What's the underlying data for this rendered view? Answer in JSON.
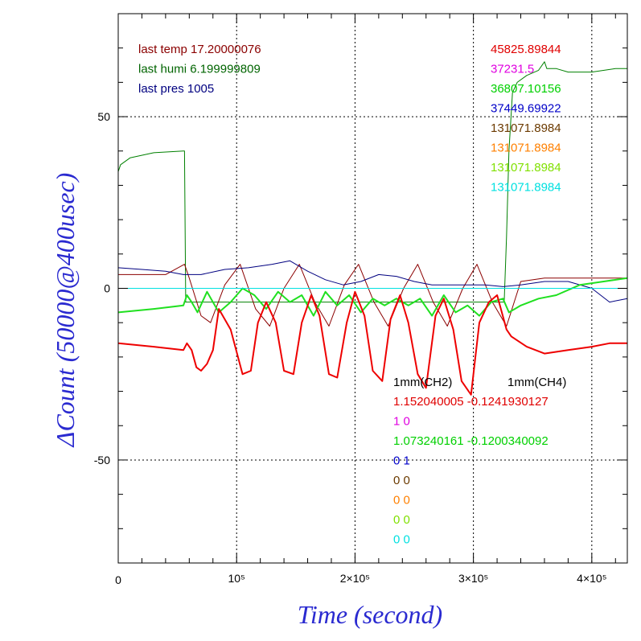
{
  "chart_data": {
    "type": "line",
    "xlabel": "Time (second)",
    "ylabel": "ΔCount (50000@400usec)",
    "xlim": [
      0,
      430000
    ],
    "ylim": [
      -80,
      80
    ],
    "grid": true,
    "x_tick_labels": [
      {
        "value": 0,
        "label": "0"
      },
      {
        "value": 100000,
        "label": "10⁵"
      },
      {
        "value": 200000,
        "label": "2×10⁵"
      },
      {
        "value": 300000,
        "label": "3×10⁵"
      },
      {
        "value": 400000,
        "label": "4×10⁵"
      }
    ],
    "y_tick_labels": [
      {
        "value": 50,
        "label": "50"
      },
      {
        "value": 0,
        "label": "0"
      },
      {
        "value": -50,
        "label": "-50"
      }
    ],
    "info_top_left": [
      {
        "text": "last temp 17.20000076",
        "color": "#8b0000"
      },
      {
        "text": "last humi 6.199999809",
        "color": "#006400"
      },
      {
        "text": "last pres 1005",
        "color": "#000080"
      }
    ],
    "info_top_right": [
      {
        "text": "45825.89844",
        "color": "#e00000"
      },
      {
        "text": "37231.5",
        "color": "#e000e0"
      },
      {
        "text": "36807.10156",
        "color": "#00d000"
      },
      {
        "text": "37449.69922",
        "color": "#0000c8"
      },
      {
        "text": "131071.8984",
        "color": "#6b3a00"
      },
      {
        "text": "131071.8984",
        "color": "#ff8000"
      },
      {
        "text": "131071.8984",
        "color": "#80e000"
      },
      {
        "text": "131071.8984",
        "color": "#00e0e0"
      }
    ],
    "legend_header": {
      "col1": "1mm(CH2)",
      "col2": "1mm(CH4)"
    },
    "legend_rows": [
      {
        "text": "1.152040005 -0.1241930127",
        "color": "#e00000"
      },
      {
        "text": "1 0",
        "color": "#e000e0"
      },
      {
        "text": "1.073240161 -0.1200340092",
        "color": "#00d000"
      },
      {
        "text": "0 1",
        "color": "#0000c8"
      },
      {
        "text": "0 0",
        "color": "#6b3a00"
      },
      {
        "text": "0 0",
        "color": "#ff8000"
      },
      {
        "text": "0 0",
        "color": "#80e000"
      },
      {
        "text": "0 0",
        "color": "#00e0e0"
      }
    ],
    "series": [
      {
        "color": "#008000",
        "x": [
          0,
          2000,
          10000,
          30000,
          55000,
          56000,
          57000,
          326000,
          328000,
          330000,
          333000,
          337000,
          345000,
          355000,
          360000,
          362000,
          370000,
          380000,
          400000,
          420000,
          430000
        ],
        "y": [
          34,
          36,
          38,
          39.5,
          40,
          40,
          -4,
          -4,
          15,
          40,
          57,
          60,
          62,
          63.5,
          66,
          64,
          64,
          63,
          63,
          64,
          64
        ]
      },
      {
        "color": "#8b0000",
        "x": [
          0,
          40000,
          56000,
          60000,
          70000,
          78000,
          90000,
          103000,
          116000,
          128000,
          140000,
          153000,
          166000,
          178000,
          191000,
          203000,
          216000,
          228000,
          241000,
          253000,
          266000,
          278000,
          291000,
          303000,
          316000,
          328000,
          340000,
          360000,
          400000,
          430000
        ],
        "y": [
          4,
          4,
          7,
          3,
          -8,
          -10,
          1,
          7,
          -6,
          -11,
          0,
          7,
          -4,
          -11,
          1,
          7,
          -4,
          -11,
          0,
          7,
          -4,
          -11,
          0,
          7,
          -4,
          -11,
          2,
          3,
          3,
          3
        ]
      },
      {
        "color": "#000080",
        "x": [
          0,
          20000,
          40000,
          55000,
          70000,
          90000,
          110000,
          130000,
          145000,
          160000,
          175000,
          190000,
          205000,
          220000,
          235000,
          250000,
          265000,
          280000,
          295000,
          310000,
          325000,
          340000,
          360000,
          380000,
          400000,
          415000,
          430000
        ],
        "y": [
          6,
          5.5,
          5,
          4,
          4,
          5.5,
          6,
          7,
          8,
          5,
          2.5,
          1,
          2,
          4,
          3.5,
          2,
          1,
          1,
          1,
          1,
          0.5,
          1,
          2,
          2,
          0,
          -4,
          -3
        ]
      },
      {
        "color": "#20e020",
        "x": [
          0,
          30000,
          55000,
          58000,
          62000,
          67000,
          75000,
          85000,
          95000,
          105000,
          115000,
          125000,
          135000,
          145000,
          155000,
          165000,
          175000,
          185000,
          195000,
          205000,
          215000,
          225000,
          235000,
          245000,
          255000,
          265000,
          275000,
          285000,
          295000,
          305000,
          315000,
          325000,
          330000,
          340000,
          355000,
          370000,
          390000,
          410000,
          430000
        ],
        "y": [
          -7,
          -6,
          -5,
          -2,
          -4,
          -7,
          -1,
          -7,
          -4,
          0,
          -2,
          -6,
          -1,
          -4,
          -2,
          -8,
          -1,
          -5,
          -2,
          -7,
          -3,
          -5,
          -3,
          -5,
          -3,
          -8,
          -2,
          -7,
          -5,
          -8,
          -4,
          -3,
          -7,
          -5,
          -3,
          -2,
          1,
          2,
          3
        ]
      },
      {
        "color": "#ee0000",
        "x": [
          0,
          30000,
          55000,
          58000,
          62000,
          66000,
          70000,
          75000,
          80000,
          85000,
          95000,
          105000,
          112000,
          118000,
          125000,
          133000,
          140000,
          148000,
          155000,
          163000,
          170000,
          178000,
          185000,
          193000,
          200000,
          208000,
          215000,
          223000,
          230000,
          238000,
          245000,
          253000,
          260000,
          268000,
          275000,
          283000,
          290000,
          298000,
          305000,
          313000,
          320000,
          328000,
          332000,
          345000,
          360000,
          380000,
          400000,
          415000,
          430000
        ],
        "y": [
          -16,
          -17,
          -18,
          -16,
          -18,
          -23,
          -24,
          -22,
          -18,
          -6,
          -12,
          -25,
          -24,
          -10,
          -4,
          -10,
          -24,
          -25,
          -10,
          -2,
          -8,
          -25,
          -26,
          -10,
          -1,
          -8,
          -24,
          -27,
          -9,
          -2,
          -10,
          -25,
          -29,
          -8,
          -3,
          -12,
          -27,
          -31,
          -10,
          -4,
          -2,
          -12,
          -14,
          -17,
          -19,
          -18,
          -17,
          -16,
          -16
        ]
      },
      {
        "color": "#00e0e0",
        "x": [
          0,
          430000
        ],
        "y": [
          0,
          0
        ]
      }
    ]
  }
}
